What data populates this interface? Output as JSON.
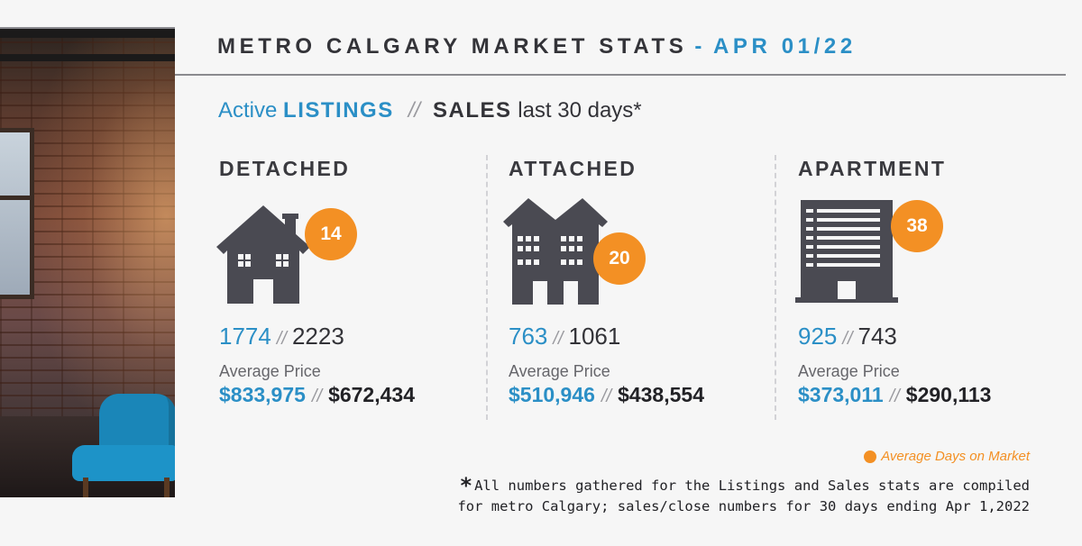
{
  "header": {
    "title": "METRO CALGARY MARKET STATS",
    "separator": "-",
    "date": "APR 01/22"
  },
  "subtitle": {
    "active": "Active",
    "listings": "LISTINGS",
    "slashes": "//",
    "sales": "SALES",
    "period": "last 30 days*"
  },
  "columns": [
    {
      "heading": "DETACHED",
      "icon": "house-icon",
      "days_on_market": "14",
      "active_listings": "1774",
      "sales": "2223",
      "avg_label": "Average Price",
      "avg_active": "$833,975",
      "avg_sales": "$672,434",
      "slash": "//"
    },
    {
      "heading": "ATTACHED",
      "icon": "townhouse-icon",
      "days_on_market": "20",
      "active_listings": "763",
      "sales": "1061",
      "avg_label": "Average Price",
      "avg_active": "$510,946",
      "avg_sales": "$438,554",
      "slash": "//"
    },
    {
      "heading": "APARTMENT",
      "icon": "apartment-building-icon",
      "days_on_market": "38",
      "active_listings": "925",
      "sales": "743",
      "avg_label": "Average Price",
      "avg_active": "$373,011",
      "avg_sales": "$290,113",
      "slash": "//"
    }
  ],
  "legend": {
    "label": "Average Days on Market"
  },
  "footnote": {
    "star": "*",
    "line1": "All numbers gathered for the Listings and Sales stats are compiled",
    "line2": "for metro Calgary; sales/close numbers for 30 days ending Apr 1,2022"
  },
  "colors": {
    "accent_blue": "#2b8fc6",
    "accent_orange": "#f39024",
    "icon_gray": "#4a4a52",
    "text_dark": "#333338"
  }
}
